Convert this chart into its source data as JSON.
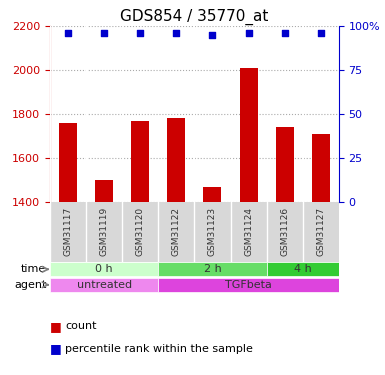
{
  "title": "GDS854 / 35770_at",
  "samples": [
    "GSM31117",
    "GSM31119",
    "GSM31120",
    "GSM31122",
    "GSM31123",
    "GSM31124",
    "GSM31126",
    "GSM31127"
  ],
  "counts": [
    1760,
    1500,
    1770,
    1780,
    1470,
    2010,
    1740,
    1710
  ],
  "percentile_ranks": [
    96,
    96,
    96,
    96,
    95,
    96,
    96,
    96
  ],
  "ylim_left": [
    1400,
    2200
  ],
  "ylim_right": [
    0,
    100
  ],
  "yticks_left": [
    1400,
    1600,
    1800,
    2000,
    2200
  ],
  "yticks_right": [
    0,
    25,
    50,
    75,
    100
  ],
  "bar_color": "#cc0000",
  "dot_color": "#0000cc",
  "bar_width": 0.5,
  "groups": {
    "time": [
      {
        "label": "0 h",
        "samples": [
          "GSM31117",
          "GSM31119",
          "GSM31120"
        ],
        "color": "#ccffcc"
      },
      {
        "label": "2 h",
        "samples": [
          "GSM31122",
          "GSM31123",
          "GSM31124"
        ],
        "color": "#66dd66"
      },
      {
        "label": "4 h",
        "samples": [
          "GSM31126",
          "GSM31127"
        ],
        "color": "#33cc33"
      }
    ],
    "agent": [
      {
        "label": "untreated",
        "samples": [
          "GSM31117",
          "GSM31119",
          "GSM31120"
        ],
        "color": "#ee88ee"
      },
      {
        "label": "TGFbeta",
        "samples": [
          "GSM31122",
          "GSM31123",
          "GSM31124",
          "GSM31126",
          "GSM31127"
        ],
        "color": "#dd44dd"
      }
    ]
  },
  "legend_count_color": "#cc0000",
  "legend_dot_color": "#0000cc",
  "grid_color": "#aaaaaa",
  "sample_label_color": "#333333",
  "left_axis_color": "#cc0000",
  "right_axis_color": "#0000cc",
  "title_color": "#000000"
}
